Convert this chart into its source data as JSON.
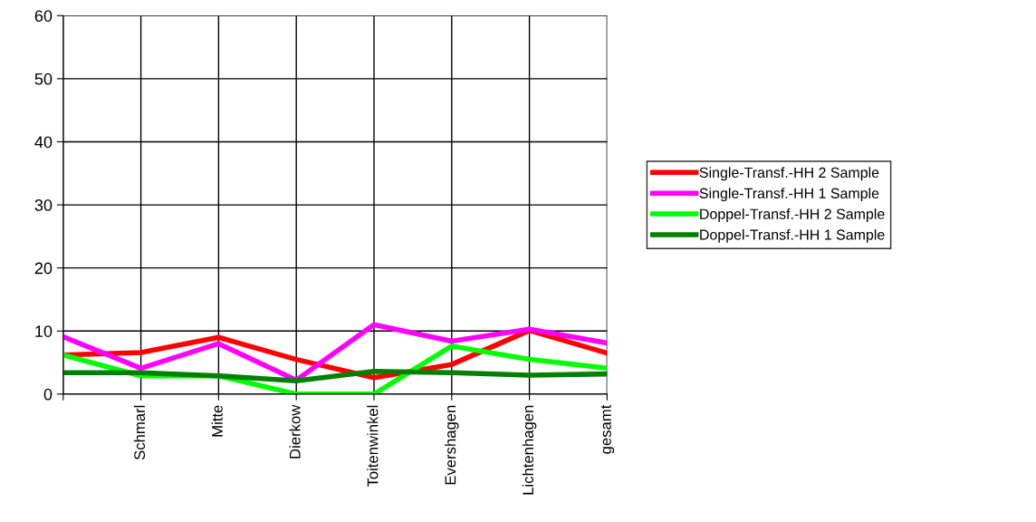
{
  "chart_data": {
    "type": "line",
    "categories": [
      null,
      "Schmarl",
      "Mitte",
      "Dierkow",
      "Toitenwinkel",
      "Evershagen",
      "Lichtenhagen",
      "gesamt"
    ],
    "series": [
      {
        "name": "Single-Transf.-HH 2 Sample",
        "color": "#ff0000",
        "values": [
          6.2,
          6.6,
          9.0,
          5.5,
          2.6,
          4.7,
          10.1,
          6.5
        ]
      },
      {
        "name": "Single-Transf.-HH 1 Sample",
        "color": "#ff00ff",
        "values": [
          9.1,
          4.1,
          8.0,
          2.2,
          11.0,
          8.4,
          10.3,
          8.1
        ]
      },
      {
        "name": "Doppel-Transf.-HH 2 Sample",
        "color": "#00ff00",
        "values": [
          6.2,
          2.9,
          2.9,
          0,
          0,
          7.6,
          5.5,
          4.1
        ]
      },
      {
        "name": "Doppel-Transf.-HH 1 Sample",
        "color": "#008000",
        "values": [
          3.4,
          3.4,
          2.9,
          2.1,
          3.6,
          3.4,
          3.0,
          3.2
        ]
      }
    ],
    "ylim": [
      0,
      60
    ],
    "yticks": [
      0,
      10,
      20,
      30,
      40,
      50,
      60
    ],
    "grid": true,
    "legend": "right",
    "marker": "none",
    "line_style": "solid"
  }
}
